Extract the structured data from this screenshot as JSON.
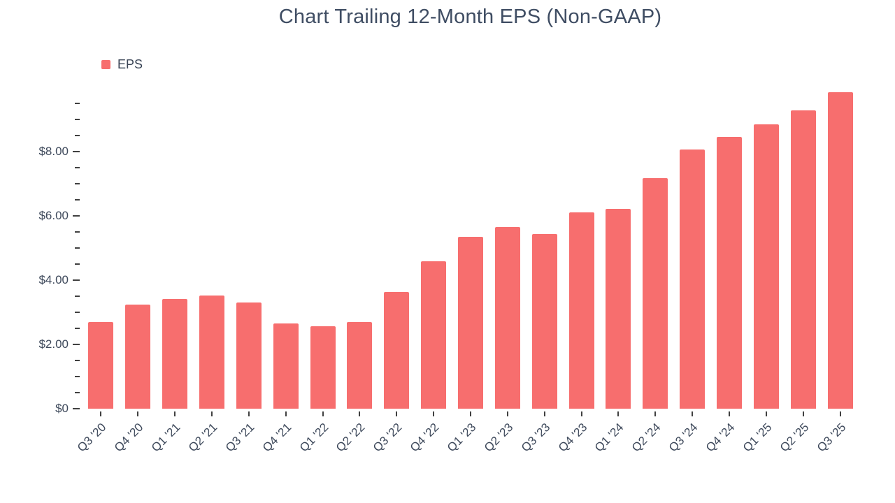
{
  "chart_data": {
    "type": "bar",
    "title": "Chart Trailing 12-Month EPS (Non-GAAP)",
    "categories": [
      "Q3 '20",
      "Q4 '20",
      "Q1 '21",
      "Q2 '21",
      "Q3 '21",
      "Q4 '21",
      "Q1 '22",
      "Q2 '22",
      "Q3 '22",
      "Q4 '22",
      "Q1 '23",
      "Q2 '23",
      "Q3 '23",
      "Q4 '23",
      "Q1 '24",
      "Q2 '24",
      "Q3 '24",
      "Q4 '24",
      "Q1 '25",
      "Q2 '25",
      "Q3 '25"
    ],
    "series": [
      {
        "name": "EPS",
        "color": "#F76E6E",
        "values": [
          2.7,
          3.25,
          3.41,
          3.52,
          3.31,
          2.65,
          2.56,
          2.69,
          3.62,
          4.58,
          5.35,
          5.65,
          5.43,
          6.1,
          6.21,
          7.18,
          8.07,
          8.46,
          8.84,
          9.29,
          9.84
        ]
      }
    ],
    "xlabel": "",
    "ylabel": "",
    "ylim": [
      0,
      10
    ],
    "y_major_step": 2,
    "y_minor_step": 0.5,
    "y_tick_labels": [
      "$0",
      "$2.00",
      "$4.00",
      "$6.00",
      "$8.00"
    ],
    "grid": false,
    "legend_position": "top-left",
    "background_color": "#ffffff",
    "text_color": "#3f4a5c"
  }
}
